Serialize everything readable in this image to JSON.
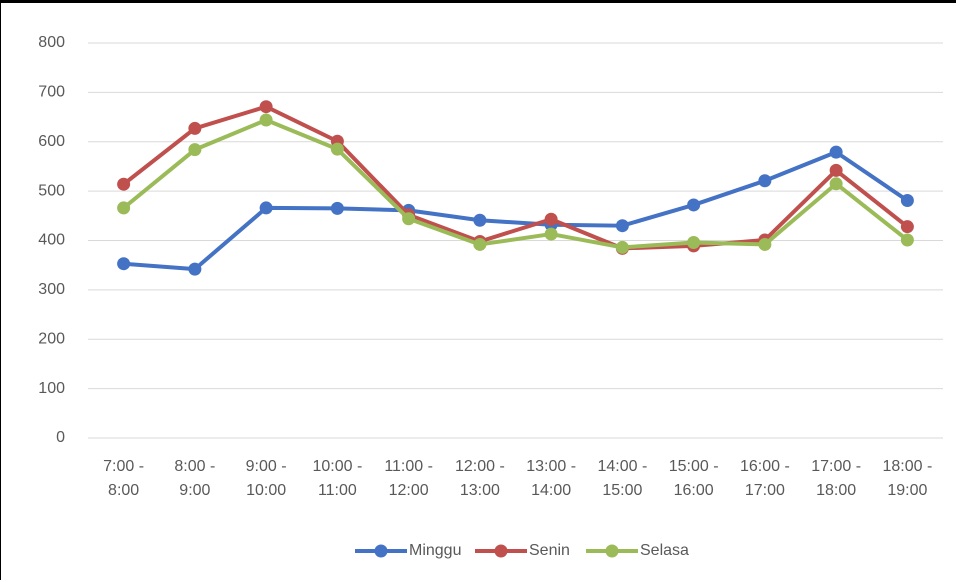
{
  "chart_data": {
    "type": "line",
    "categories": [
      "7:00 - 8:00",
      "8:00 - 9:00",
      "9:00 - 10:00",
      "10:00 - 11:00",
      "11:00 - 12:00",
      "12:00 - 13:00",
      "13:00 - 14:00",
      "14:00 - 15:00",
      "15:00 - 16:00",
      "16:00 - 17:00",
      "17:00 - 18:00",
      "18:00 - 19:00"
    ],
    "series": [
      {
        "name": "Minggu",
        "color": "#4472c4",
        "values": [
          353,
          342,
          466,
          465,
          461,
          441,
          432,
          430,
          472,
          521,
          579,
          481
        ]
      },
      {
        "name": "Senin",
        "color": "#c0504d",
        "values": [
          514,
          627,
          671,
          601,
          452,
          398,
          443,
          384,
          389,
          401,
          542,
          428
        ]
      },
      {
        "name": "Selasa",
        "color": "#9bbb59",
        "values": [
          466,
          584,
          644,
          585,
          444,
          392,
          413,
          386,
          396,
          392,
          515,
          401
        ]
      }
    ],
    "ylim": [
      0,
      800
    ],
    "yticks": [
      0,
      100,
      200,
      300,
      400,
      500,
      600,
      700,
      800
    ],
    "grid": true,
    "legend": "bottom"
  }
}
